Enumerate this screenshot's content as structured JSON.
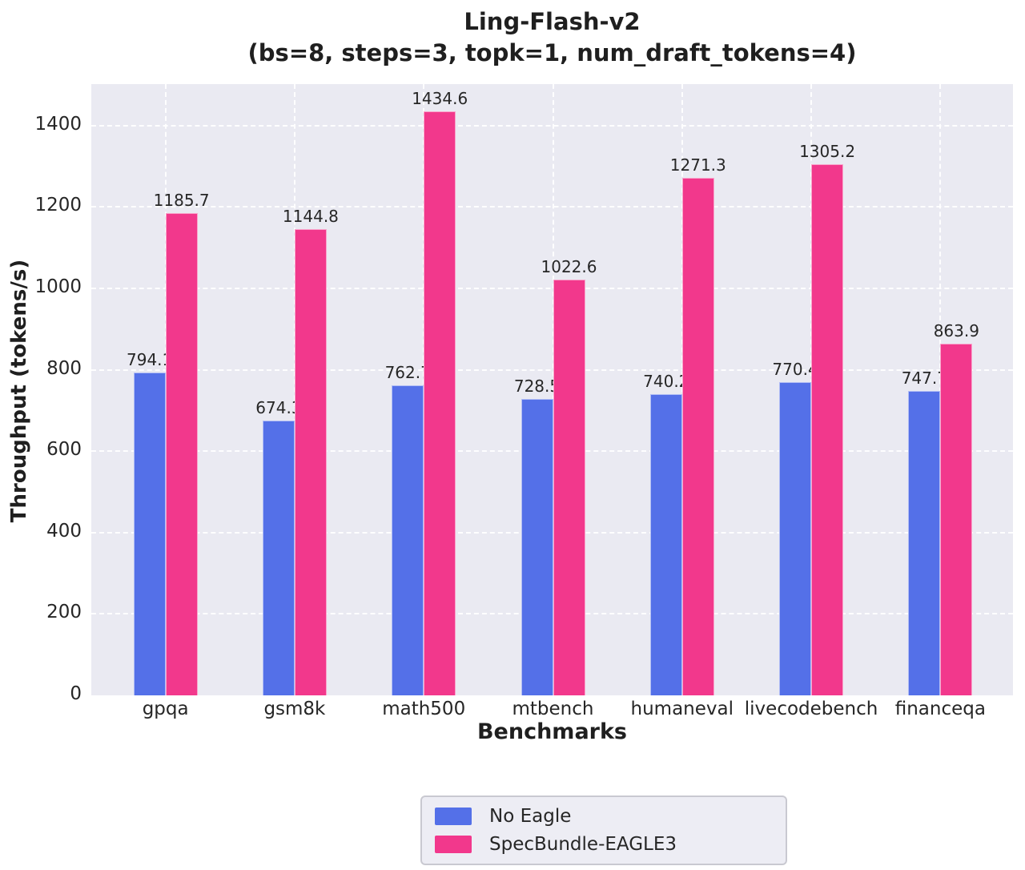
{
  "title": "Ling-Flash-v2",
  "subtitle": "(bs=8, steps=3, topk=1, num_draft_tokens=4)",
  "chart_data": {
    "type": "bar",
    "title": "Ling-Flash-v2\n(bs=8, steps=3, topk=1, num_draft_tokens=4)",
    "categories": [
      "gpqa",
      "gsm8k",
      "math500",
      "mtbench",
      "humaneval",
      "livecodebench",
      "financeqa"
    ],
    "series": [
      {
        "name": "No Eagle",
        "color": "#5470e8",
        "values": [
          794.1,
          674.3,
          762.7,
          728.5,
          740.2,
          770.4,
          747.7
        ]
      },
      {
        "name": "SpecBundle-EAGLE3",
        "color": "#f2388c",
        "values": [
          1185.7,
          1144.8,
          1434.6,
          1022.6,
          1271.3,
          1305.2,
          863.9
        ]
      }
    ],
    "xlabel": "Benchmarks",
    "ylabel": "Throughput (tokens/s)",
    "ylim": [
      0,
      1502
    ],
    "yticks": [
      0,
      200,
      400,
      600,
      800,
      1000,
      1200,
      1400
    ],
    "grid": "dashed-white-both-axes",
    "legend_position": "bottom-center",
    "bar_value_labels": true
  },
  "colors": {
    "plot_background": "#eaeaf2",
    "gridline": "#ffffff",
    "text": "#262626",
    "series_blue": "#5470e8",
    "series_pink": "#f2388c",
    "legend_background": "#ededf4",
    "legend_border": "#c9c9d1"
  }
}
